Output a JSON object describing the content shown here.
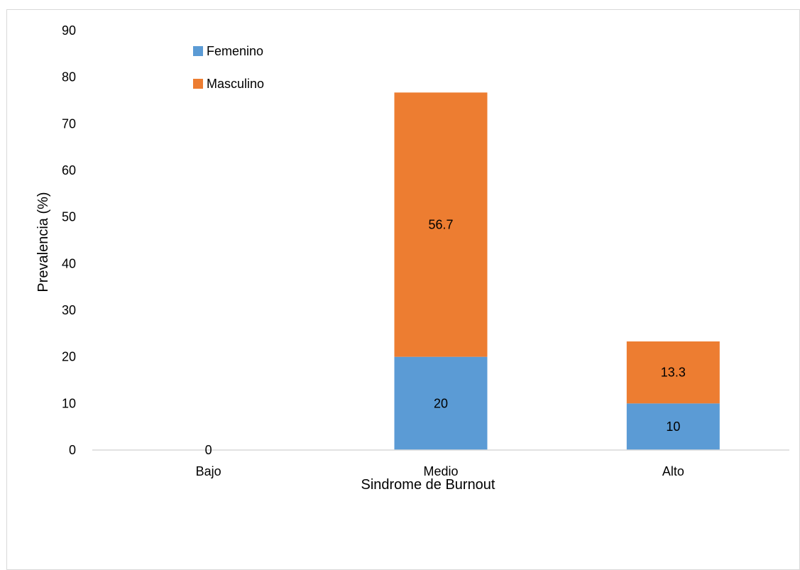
{
  "chart_data": {
    "type": "bar",
    "stacked": true,
    "title": "",
    "xlabel": "Sindrome de Burnout",
    "ylabel": "Prevalencia (%)",
    "ylim": [
      0,
      90
    ],
    "yticks": [
      0,
      10,
      20,
      30,
      40,
      50,
      60,
      70,
      80,
      90
    ],
    "categories": [
      "Bajo",
      "Medio",
      "Alto"
    ],
    "series": [
      {
        "name": "Femenino",
        "values": [
          0,
          20,
          10
        ],
        "labels": [
          "0",
          "20",
          "10"
        ],
        "color": "#5b9bd5"
      },
      {
        "name": "Masculino",
        "values": [
          0,
          56.7,
          13.3
        ],
        "labels": [
          "",
          "56.7",
          "13.3"
        ],
        "color": "#ed7d31"
      }
    ],
    "legend_position": "top-left",
    "grid": false
  }
}
